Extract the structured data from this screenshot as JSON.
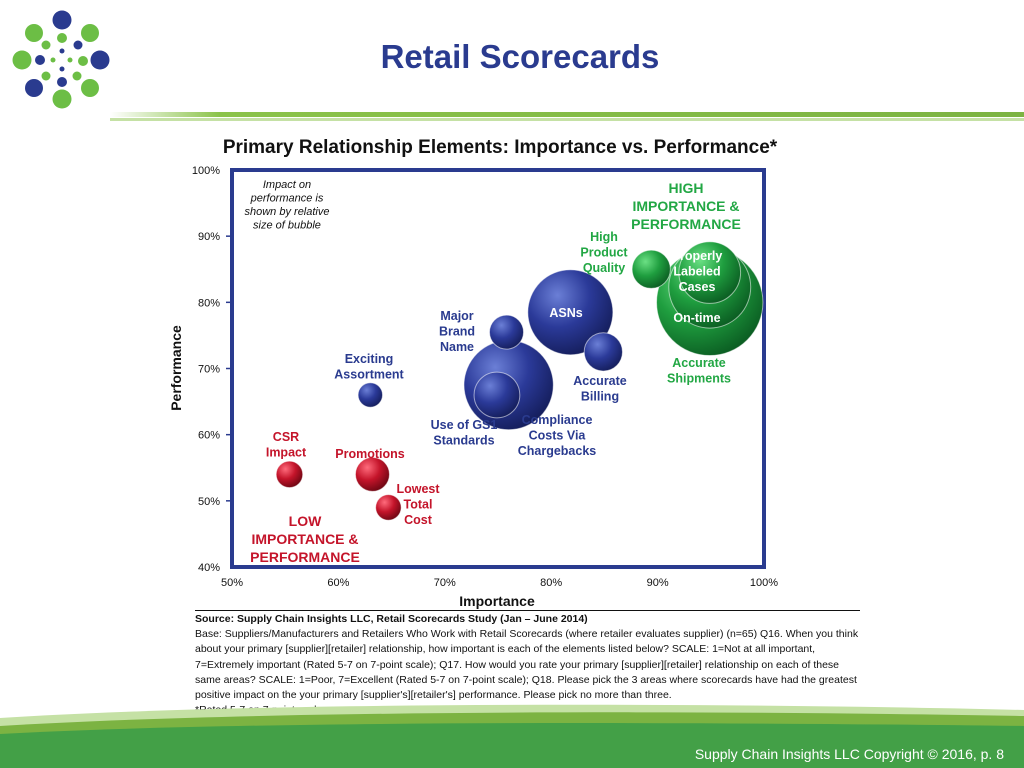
{
  "slide": {
    "title": "Retail Scorecards",
    "footer": "Supply Chain Insights LLC Copyright © 2016, p. 8"
  },
  "colors": {
    "blue": "#2a3b8f",
    "green": "#22a744",
    "red": "#c4142a",
    "logo_green": "#6cbe45"
  },
  "chart_data": {
    "type": "bubble",
    "title": "Primary Relationship Elements: Importance vs. Performance*",
    "xlabel": "Importance",
    "ylabel": "Performance",
    "xlim": [
      50,
      100
    ],
    "ylim": [
      40,
      100
    ],
    "x_ticks": [
      "50%",
      "60%",
      "70%",
      "80%",
      "90%",
      "100%"
    ],
    "y_ticks": [
      "40%",
      "50%",
      "60%",
      "70%",
      "80%",
      "90%",
      "100%"
    ],
    "legend_note": [
      "Impact on",
      "performance is",
      "shown by relative",
      "size of bubble"
    ],
    "quadrant_labels": {
      "high": [
        "HIGH",
        "IMPORTANCE &",
        "PERFORMANCE"
      ],
      "low": [
        "LOW",
        "IMPORTANCE &",
        "PERFORMANCE"
      ]
    },
    "points": [
      {
        "label": [
          "CSR",
          "Impact"
        ],
        "x": 55.4,
        "y": 54,
        "size": 2.5,
        "color": "red"
      },
      {
        "label": [
          "Promotions"
        ],
        "x": 63.2,
        "y": 54,
        "size": 3.2,
        "color": "red"
      },
      {
        "label": [
          "Lowest",
          "Total",
          "Cost"
        ],
        "x": 64.7,
        "y": 49,
        "size": 2.4,
        "color": "red"
      },
      {
        "label": [
          "Exciting",
          "Assortment"
        ],
        "x": 63.0,
        "y": 66,
        "size": 2.3,
        "color": "blue"
      },
      {
        "label": [
          "Major",
          "Brand",
          "Name"
        ],
        "x": 75.8,
        "y": 75.5,
        "size": 3.2,
        "color": "blue"
      },
      {
        "label": [
          "Compliance",
          "Costs Via",
          "Chargebacks"
        ],
        "x": 76.0,
        "y": 67.5,
        "size": 8.4,
        "color": "blue"
      },
      {
        "label": [
          "Use of GS1",
          "Standards"
        ],
        "x": 74.9,
        "y": 66,
        "size": 4.3,
        "color": "blue"
      },
      {
        "label": [
          "ASNs"
        ],
        "x": 81.8,
        "y": 78.5,
        "size": 8.0,
        "color": "blue"
      },
      {
        "label": [
          "Accurate",
          "Billing"
        ],
        "x": 84.9,
        "y": 72.5,
        "size": 3.6,
        "color": "blue"
      },
      {
        "label": [
          "High",
          "Product",
          "Quality"
        ],
        "x": 89.4,
        "y": 85,
        "size": 3.6,
        "color": "green"
      },
      {
        "label": [
          "Accurate",
          "Shipments"
        ],
        "x": 94.9,
        "y": 80,
        "size": 10.0,
        "color": "green"
      },
      {
        "label": [
          "On-time"
        ],
        "x": 94.9,
        "y": 82.3,
        "size": 7.7,
        "color": "green"
      },
      {
        "label": [
          "Properly",
          "Labeled",
          "Cases"
        ],
        "x": 94.9,
        "y": 84.5,
        "size": 5.8,
        "color": "green"
      }
    ]
  },
  "source": {
    "title": "Source:  Supply Chain Insights LLC, Retail Scorecards Study (Jan – June 2014)",
    "body": "Base: Suppliers/Manufacturers and Retailers Who Work with Retail Scorecards (where retailer evaluates supplier) (n=65) Q16. When you think about your primary [supplier][retailer] relationship, how important is each of the elements listed below? SCALE: 1=Not at all important, 7=Extremely important (Rated 5-7 on 7-point scale); Q17. How would you rate your primary [supplier][retailer] relationship on each of these same areas? SCALE: 1=Poor, 7=Excellent (Rated 5-7 on 7-point scale); Q18. Please pick the 3 areas where scorecards have had the greatest positive impact on the your primary [supplier's][retailer's] performance.  Please pick no more than three.",
    "note": "*Rated 5-7 on 7-point scale"
  }
}
